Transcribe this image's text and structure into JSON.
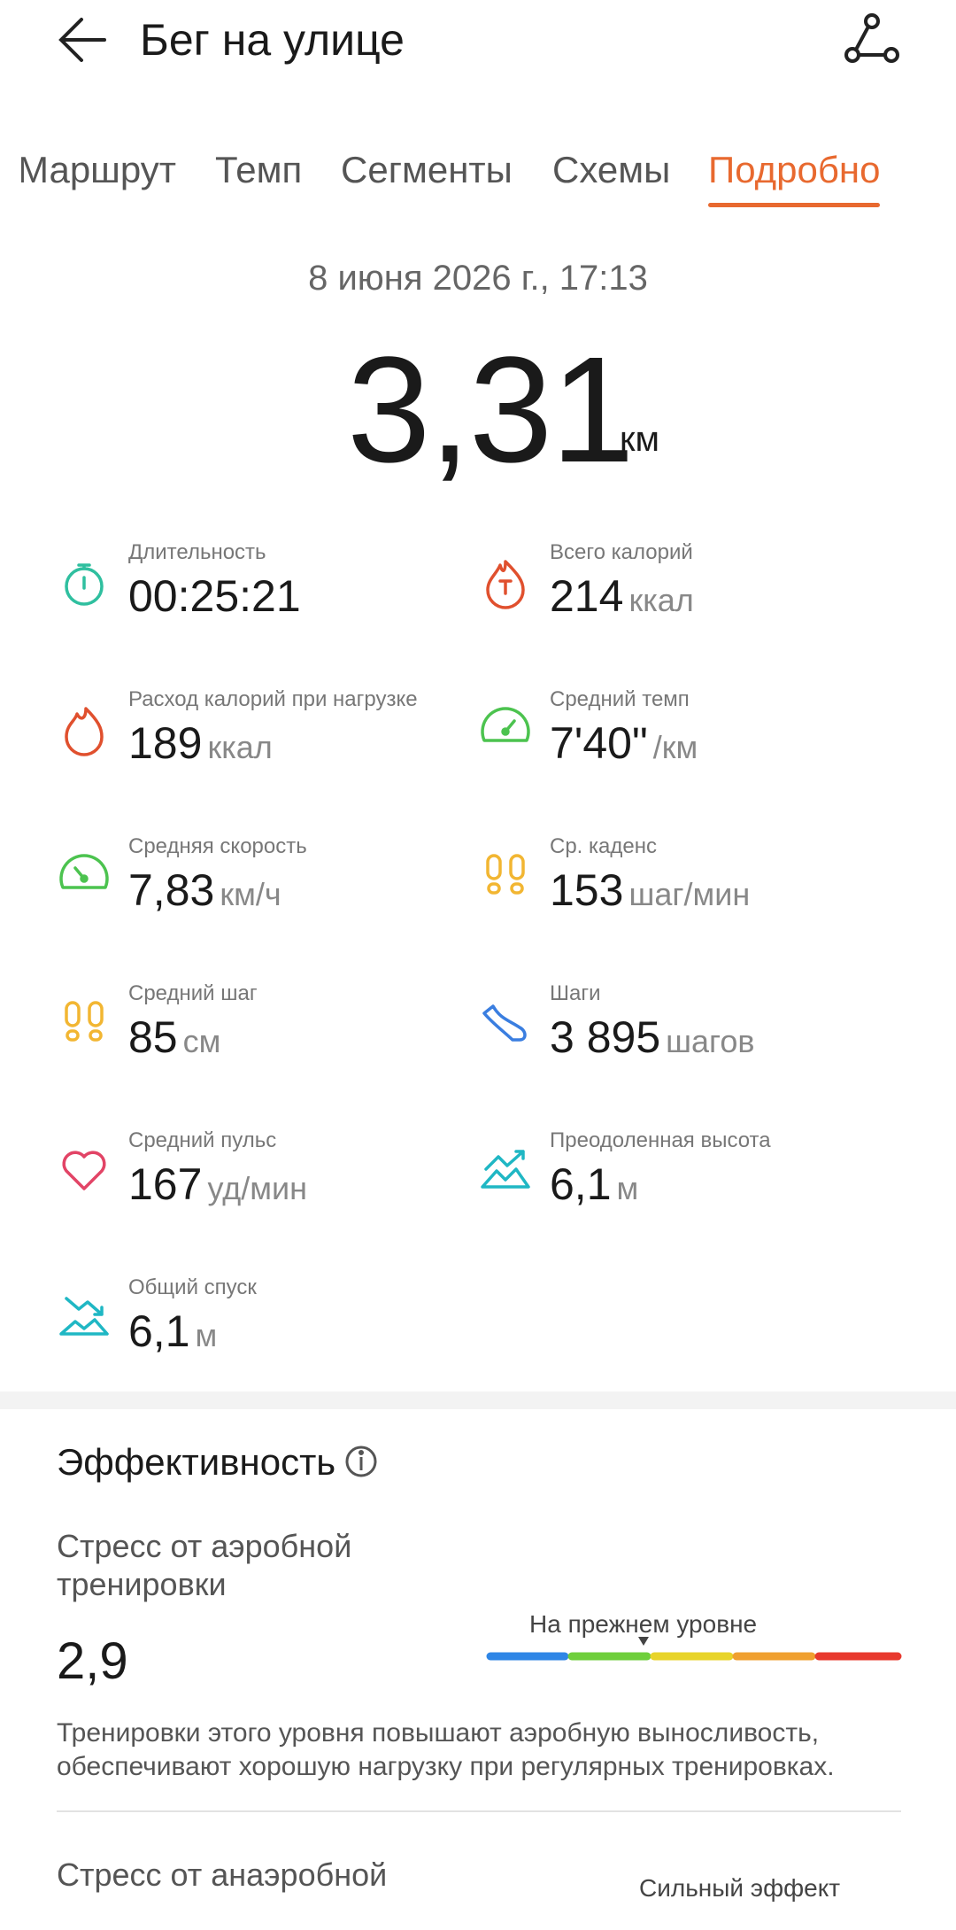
{
  "header": {
    "title": "Бег на улице"
  },
  "tabs": {
    "items": [
      "Маршрут",
      "Темп",
      "Сегменты",
      "Схемы",
      "Подробно"
    ],
    "active": 4
  },
  "summary": {
    "date": "8 июня 2026 г., 17:13",
    "distance": "3,31",
    "unit": "км"
  },
  "metrics": [
    {
      "label": "Длительность",
      "value": "00:25:21",
      "unit": null
    },
    {
      "label": "Всего калорий",
      "value": "214",
      "unit": "ккал"
    },
    {
      "label": "Расход калорий при нагрузке",
      "value": "189",
      "unit": "ккал"
    },
    {
      "label": "Средний темп",
      "value": "7'40\"",
      "unit": "/км"
    },
    {
      "label": "Средняя скорость",
      "value": "7,83",
      "unit": "км/ч"
    },
    {
      "label": "Ср. каденс",
      "value": "153",
      "unit": "шаг/мин"
    },
    {
      "label": "Средний шаг",
      "value": "85",
      "unit": "см"
    },
    {
      "label": "Шаги",
      "value": "3 895",
      "unit": "шагов"
    },
    {
      "label": "Средний пульс",
      "value": "167",
      "unit": "уд/мин"
    },
    {
      "label": "Преодоленная высота",
      "value": "6,1",
      "unit": "м"
    },
    {
      "label": "Общий спуск",
      "value": "6,1",
      "unit": "м"
    }
  ],
  "effectiveness": {
    "title": "Эффективность",
    "aerobic": {
      "title_lines": [
        "Стресс от аэробной",
        "тренировки"
      ],
      "value": "2,9",
      "level": "На прежнем уровне",
      "description_lines": [
        "Тренировки этого уровня повышают аэробную выносливость,",
        "обеспечивают хорошую нагрузку при регулярных тренировках."
      ]
    },
    "anaerobic": {
      "title": "Стресс от анаэробной",
      "level": "Сильный эффект"
    }
  }
}
